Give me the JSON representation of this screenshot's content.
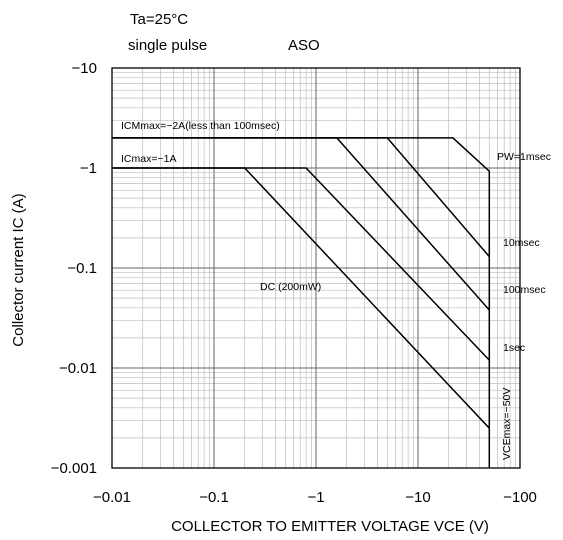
{
  "chart_data": {
    "type": "line",
    "title": "ASO",
    "conditions": [
      "Ta=25°C",
      "single pulse"
    ],
    "xlabel": "COLLECTOR TO EMITTER VOLTAGE  VCE (V)",
    "ylabel": "Collector current  IC (A)",
    "x_scale": "log",
    "y_scale": "log",
    "x_magnitude_range": [
      0.01,
      100
    ],
    "y_magnitude_range": [
      0.001,
      10
    ],
    "x_ticks": [
      0.01,
      0.1,
      1,
      10,
      100
    ],
    "y_ticks": [
      0.001,
      0.01,
      0.1,
      1,
      10
    ],
    "x_tick_labels": [
      "−0.01",
      "−0.1",
      "−1",
      "−10",
      "−100"
    ],
    "y_tick_labels": [
      "−0.001",
      "−0.01",
      "−0.1",
      "−1",
      "−10"
    ],
    "grid": true,
    "line_color": "#000000",
    "grid_color": "#bdbdbd",
    "limits": [
      {
        "label": "ICMmax=−2A(less than 100msec)",
        "value": 2
      },
      {
        "label": "ICmax=−1A",
        "value": 1
      },
      {
        "label": "VCEmax=−50V",
        "value": 50
      }
    ],
    "series": [
      {
        "name": "PW=1msec",
        "x": [
          0.01,
          22,
          50,
          50
        ],
        "y": [
          2,
          2,
          0.93,
          0.001
        ]
      },
      {
        "name": "10msec",
        "x": [
          0.01,
          5,
          50
        ],
        "y": [
          2,
          2,
          0.13
        ]
      },
      {
        "name": "100msec",
        "x": [
          0.01,
          1.6,
          50
        ],
        "y": [
          2,
          2,
          0.038
        ]
      },
      {
        "name": "1sec",
        "x": [
          0.01,
          0.8,
          50
        ],
        "y": [
          1,
          1,
          0.012
        ]
      },
      {
        "name": "DC (200mW)",
        "x": [
          0.01,
          0.2,
          50
        ],
        "y": [
          1,
          1,
          0.0025
        ]
      }
    ]
  }
}
